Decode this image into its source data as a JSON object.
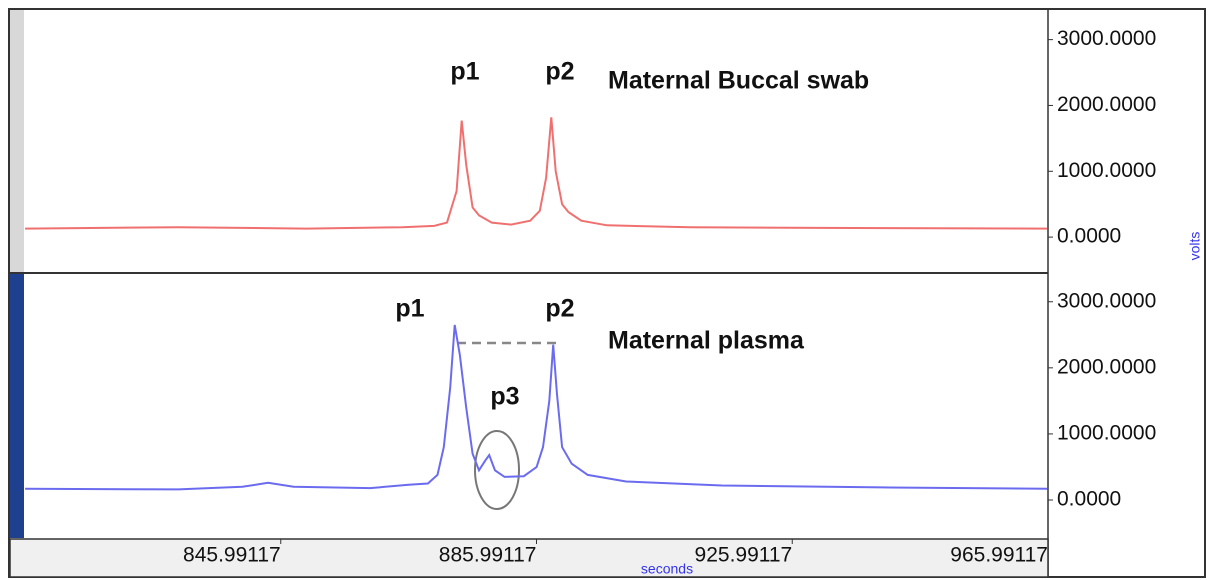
{
  "chart_data": [
    {
      "type": "line",
      "xlim": [
        805.99117,
        965.99117
      ],
      "ylim": [
        -530,
        3450
      ],
      "yticks": [
        {
          "value": 0,
          "label": "0.0000"
        },
        {
          "value": 1000,
          "label": "1000.0000"
        },
        {
          "value": 2000,
          "label": "2000.0000"
        },
        {
          "value": 3000,
          "label": "3000.0000"
        }
      ],
      "y_label": "volts",
      "annotations": [
        "p1",
        "p2",
        "Maternal Buccal swab"
      ],
      "series": [
        {
          "color": "#f07070",
          "x": [
            806,
            830,
            850,
            865,
            870,
            872,
            873.5,
            874.3,
            875,
            876,
            877,
            879,
            882,
            885,
            886.5,
            887.5,
            888.3,
            889,
            890,
            891,
            893,
            897,
            910,
            930,
            965.9
          ],
          "values": [
            130,
            150,
            130,
            150,
            170,
            220,
            700,
            1770,
            1100,
            450,
            330,
            220,
            190,
            250,
            400,
            900,
            1820,
            1000,
            500,
            380,
            250,
            180,
            150,
            140,
            130
          ]
        }
      ]
    },
    {
      "type": "line",
      "xlim": [
        805.99117,
        965.99117
      ],
      "ylim": [
        -560,
        3420
      ],
      "xticks": [
        845.99117,
        885.99117,
        925.99117,
        965.99117
      ],
      "yticks": [
        {
          "value": 0,
          "label": "0.0000"
        },
        {
          "value": 1000,
          "label": "1000.0000"
        },
        {
          "value": 2000,
          "label": "2000.0000"
        },
        {
          "value": 3000,
          "label": "3000.0000"
        }
      ],
      "x_label": "seconds",
      "annotations": [
        "p1",
        "p2",
        "p3",
        "Maternal plasma"
      ],
      "series": [
        {
          "color": "#6b6bf0",
          "x": [
            806,
            830,
            840,
            844,
            848,
            860,
            866,
            869,
            870.5,
            871.5,
            872.5,
            873.2,
            874,
            875,
            876,
            877,
            878,
            878.6,
            879.5,
            881,
            884,
            886,
            887,
            888,
            888.6,
            889.2,
            890,
            891.5,
            894,
            900,
            915,
            940,
            965.9
          ],
          "values": [
            170,
            160,
            200,
            260,
            200,
            180,
            230,
            250,
            380,
            800,
            1700,
            2650,
            2200,
            1400,
            700,
            450,
            600,
            680,
            450,
            350,
            360,
            500,
            800,
            1500,
            2350,
            1600,
            800,
            550,
            380,
            280,
            220,
            190,
            170
          ]
        }
      ]
    }
  ]
}
